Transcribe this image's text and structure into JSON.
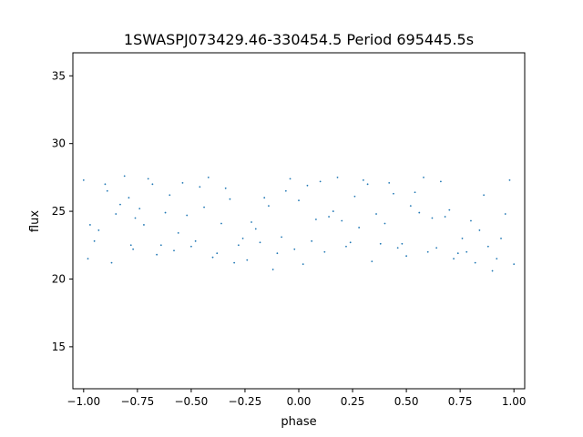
{
  "chart_data": {
    "type": "scatter",
    "title": "1SWASPJ073429.46-330454.5 Period 695445.5s",
    "xlabel": "phase",
    "ylabel": "flux",
    "xlim": [
      -1.05,
      1.05
    ],
    "ylim": [
      11.9,
      36.7
    ],
    "xticks": [
      -1.0,
      -0.75,
      -0.5,
      -0.25,
      0.0,
      0.25,
      0.5,
      0.75,
      1.0
    ],
    "xtick_labels": [
      "−1.00",
      "−0.75",
      "−0.50",
      "−0.25",
      "0.00",
      "0.25",
      "0.50",
      "0.75",
      "1.00"
    ],
    "yticks": [
      15,
      20,
      25,
      30,
      35
    ],
    "ytick_labels": [
      "15",
      "20",
      "25",
      "30",
      "35"
    ],
    "grid": false,
    "legend": "none",
    "marker_color": "#1f77b4",
    "series": [
      {
        "x": [
          -1.0,
          -0.98,
          -0.97,
          -0.95,
          -0.93,
          -0.9,
          -0.89,
          -0.87,
          -0.85,
          -0.83,
          -0.81,
          -0.79,
          -0.78,
          -0.77,
          -0.76,
          -0.74,
          -0.72,
          -0.7,
          -0.68,
          -0.66,
          -0.64,
          -0.62,
          -0.6,
          -0.58,
          -0.56,
          -0.54,
          -0.52,
          -0.5,
          -0.48,
          -0.46,
          -0.44,
          -0.42,
          -0.4,
          -0.38,
          -0.36,
          -0.34,
          -0.32,
          -0.3,
          -0.28,
          -0.26,
          -0.24,
          -0.22,
          -0.2,
          -0.18,
          -0.16,
          -0.14,
          -0.12,
          -0.1,
          -0.08,
          -0.06,
          -0.04,
          -0.02,
          0.0,
          0.02,
          0.04,
          0.06,
          0.08,
          0.1,
          0.12,
          0.14,
          0.16,
          0.18,
          0.2,
          0.22,
          0.24,
          0.26,
          0.28,
          0.3,
          0.32,
          0.34,
          0.36,
          0.38,
          0.4,
          0.42,
          0.44,
          0.46,
          0.48,
          0.5,
          0.52,
          0.54,
          0.56,
          0.58,
          0.6,
          0.62,
          0.64,
          0.66,
          0.68,
          0.7,
          0.72,
          0.74,
          0.76,
          0.78,
          0.8,
          0.82,
          0.84,
          0.86,
          0.88,
          0.9,
          0.92,
          0.94,
          0.96,
          0.98,
          1.0
        ],
        "y": [
          27.3,
          21.5,
          24.0,
          22.8,
          23.6,
          27.0,
          26.5,
          21.2,
          24.8,
          25.5,
          27.6,
          26.0,
          22.5,
          22.2,
          24.5,
          25.2,
          24.0,
          27.4,
          27.0,
          21.8,
          22.5,
          24.9,
          26.2,
          22.1,
          23.4,
          27.1,
          24.7,
          22.4,
          22.8,
          26.8,
          25.3,
          27.5,
          21.6,
          21.9,
          24.1,
          26.7,
          25.9,
          21.2,
          22.5,
          23.0,
          21.4,
          24.2,
          23.7,
          22.7,
          26.0,
          25.4,
          20.7,
          21.9,
          23.1,
          26.5,
          27.4,
          22.2,
          25.8,
          21.1,
          26.9,
          22.8,
          24.4,
          27.2,
          22.0,
          24.6,
          25.0,
          27.5,
          24.3,
          22.4,
          22.7,
          26.1,
          23.8,
          27.3,
          27.0,
          21.3,
          24.8,
          22.6,
          24.1,
          27.1,
          26.3,
          22.3,
          22.6,
          21.7,
          25.4,
          26.4,
          24.9,
          27.5,
          22.0,
          24.5,
          22.3,
          27.2,
          24.6,
          25.1,
          21.5,
          21.9,
          23.0,
          22.0,
          24.3,
          21.2,
          23.6,
          26.2,
          22.4,
          20.6,
          21.5,
          23.0,
          24.8,
          27.3,
          21.1
        ]
      }
    ]
  }
}
